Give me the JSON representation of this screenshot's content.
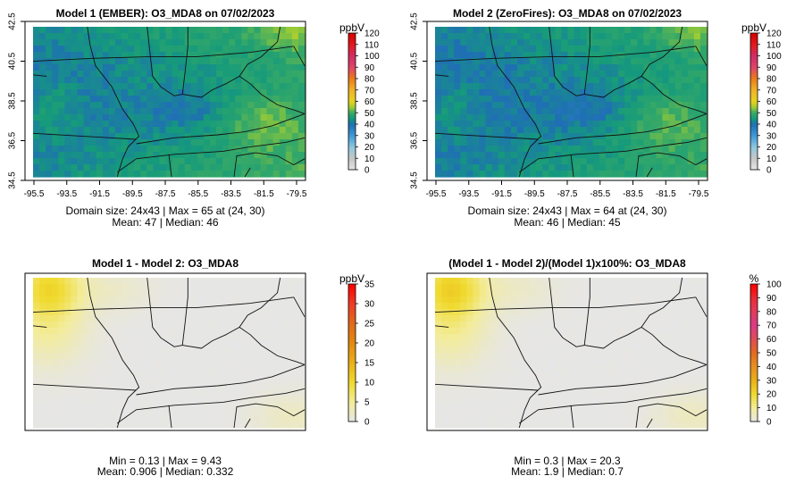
{
  "palettes": {
    "ppb_conc": [
      [
        "#e6e6e6",
        0
      ],
      [
        "#c6c6c6",
        10
      ],
      [
        "#8fc8e0",
        20
      ],
      [
        "#3f9ad6",
        30
      ],
      [
        "#1f6fb4",
        40
      ],
      [
        "#159a7c",
        45
      ],
      [
        "#35a868",
        50
      ],
      [
        "#9bcb35",
        55
      ],
      [
        "#e6d31d",
        60
      ],
      [
        "#f0b428",
        70
      ],
      [
        "#ec7d16",
        80
      ],
      [
        "#e0456a",
        90
      ],
      [
        "#d12d66",
        100
      ],
      [
        "#e31a1c",
        110
      ],
      [
        "#d40000",
        120
      ]
    ],
    "ppb_diff": [
      [
        "#e6e6e6",
        0
      ],
      [
        "#f3ec9a",
        5
      ],
      [
        "#f0da2e",
        10
      ],
      [
        "#ebb018",
        15
      ],
      [
        "#e38a10",
        20
      ],
      [
        "#e06a1a",
        25
      ],
      [
        "#ee3d28",
        30
      ],
      [
        "#ff0000",
        35
      ]
    ],
    "pct_diff": [
      [
        "#e6e6e6",
        0
      ],
      [
        "#f3ec9a",
        10
      ],
      [
        "#f0da2e",
        20
      ],
      [
        "#ebb018",
        30
      ],
      [
        "#e89020",
        40
      ],
      [
        "#e46b20",
        50
      ],
      [
        "#e24c54",
        60
      ],
      [
        "#da3a86",
        70
      ],
      [
        "#e23a5c",
        80
      ],
      [
        "#ec2a34",
        90
      ],
      [
        "#ff0000",
        100
      ]
    ]
  },
  "panels": [
    {
      "id": "p1",
      "title": "Model 1 (EMBER): O3_MDA8 on 07/02/2023",
      "stats": [
        "Domain size: 24x43 | Max = 65 at (24, 30)",
        "Mean: 47 |  Median: 46"
      ],
      "show_axes": true,
      "x_ticks": [
        "-95.5",
        "-93.5",
        "-91.5",
        "-89.5",
        "-87.5",
        "-85.5",
        "-83.5",
        "-81.5",
        "-79.5"
      ],
      "y_ticks": [
        "34.5",
        "36.5",
        "38.5",
        "40.5",
        "42.5"
      ],
      "legend": {
        "unit": "ppbV",
        "ticks": [
          "0",
          "10",
          "20",
          "30",
          "40",
          "50",
          "60",
          "70",
          "80",
          "90",
          "100",
          "110",
          "120"
        ],
        "min": 0,
        "max": 120,
        "palette": "ppb_conc"
      },
      "field": {
        "kind": "conc",
        "base": 47,
        "seed": 11
      }
    },
    {
      "id": "p2",
      "title": "Model 2 (ZeroFires): O3_MDA8 on 07/02/2023",
      "stats": [
        "Domain size: 24x43 | Max = 64 at (24, 30)",
        "Mean: 46 |  Median: 45"
      ],
      "show_axes": true,
      "x_ticks": [
        "-95.5",
        "-93.5",
        "-91.5",
        "-89.5",
        "-87.5",
        "-85.5",
        "-83.5",
        "-81.5",
        "-79.5"
      ],
      "y_ticks": [
        "34.5",
        "36.5",
        "38.5",
        "40.5",
        "42.5"
      ],
      "legend": {
        "unit": "ppbV",
        "ticks": [
          "0",
          "10",
          "20",
          "30",
          "40",
          "50",
          "60",
          "70",
          "80",
          "90",
          "100",
          "110",
          "120"
        ],
        "min": 0,
        "max": 120,
        "palette": "ppb_conc"
      },
      "field": {
        "kind": "conc",
        "base": 46,
        "seed": 11
      }
    },
    {
      "id": "p3",
      "title": "Model 1 - Model 2: O3_MDA8",
      "stats": [
        "Min = 0.13 | Max = 9.43",
        "Mean: 0.906 |  Median: 0.332"
      ],
      "show_axes": false,
      "x_ticks": [],
      "y_ticks": [],
      "legend": {
        "unit": "ppbV",
        "ticks": [
          "0",
          "5",
          "10",
          "15",
          "20",
          "25",
          "30",
          "35"
        ],
        "min": 0,
        "max": 35,
        "palette": "ppb_diff"
      },
      "field": {
        "kind": "diff",
        "peak": 9.43,
        "seed": 5
      }
    },
    {
      "id": "p4",
      "title": "(Model 1 - Model 2)/(Model 1)x100%: O3_MDA8",
      "stats": [
        "Min = 0.3 | Max = 20.3",
        "Mean: 1.9 |  Median: 0.7"
      ],
      "show_axes": false,
      "x_ticks": [],
      "y_ticks": [],
      "legend": {
        "unit": "%",
        "ticks": [
          "0",
          "10",
          "20",
          "30",
          "40",
          "50",
          "60",
          "70",
          "80",
          "90",
          "100"
        ],
        "min": 0,
        "max": 100,
        "palette": "pct_diff"
      },
      "field": {
        "kind": "diff",
        "peak": 20.3,
        "seed": 5
      }
    }
  ],
  "chart_data": [
    {
      "type": "heatmap",
      "title": "Model 1 (EMBER): O3_MDA8 on 07/02/2023",
      "grid_size": "24x43",
      "xlabel": "",
      "ylabel": "",
      "xlim": [
        -95.5,
        -79.5
      ],
      "ylim": [
        34.5,
        42.5
      ],
      "colorbar": {
        "unit": "ppbV",
        "range": [
          0,
          120
        ]
      },
      "stats": {
        "max": 65,
        "max_at": [
          24,
          30
        ],
        "mean": 47,
        "median": 46
      }
    },
    {
      "type": "heatmap",
      "title": "Model 2 (ZeroFires): O3_MDA8 on 07/02/2023",
      "grid_size": "24x43",
      "xlim": [
        -95.5,
        -79.5
      ],
      "ylim": [
        34.5,
        42.5
      ],
      "colorbar": {
        "unit": "ppbV",
        "range": [
          0,
          120
        ]
      },
      "stats": {
        "max": 64,
        "max_at": [
          24,
          30
        ],
        "mean": 46,
        "median": 45
      }
    },
    {
      "type": "heatmap",
      "title": "Model 1 - Model 2: O3_MDA8",
      "colorbar": {
        "unit": "ppbV",
        "range": [
          0,
          35
        ]
      },
      "stats": {
        "min": 0.13,
        "max": 9.43,
        "mean": 0.906,
        "median": 0.332
      }
    },
    {
      "type": "heatmap",
      "title": "(Model 1 - Model 2)/(Model 1)x100%: O3_MDA8",
      "colorbar": {
        "unit": "%",
        "range": [
          0,
          100
        ]
      },
      "stats": {
        "min": 0.3,
        "max": 20.3,
        "mean": 1.9,
        "median": 0.7
      }
    }
  ]
}
